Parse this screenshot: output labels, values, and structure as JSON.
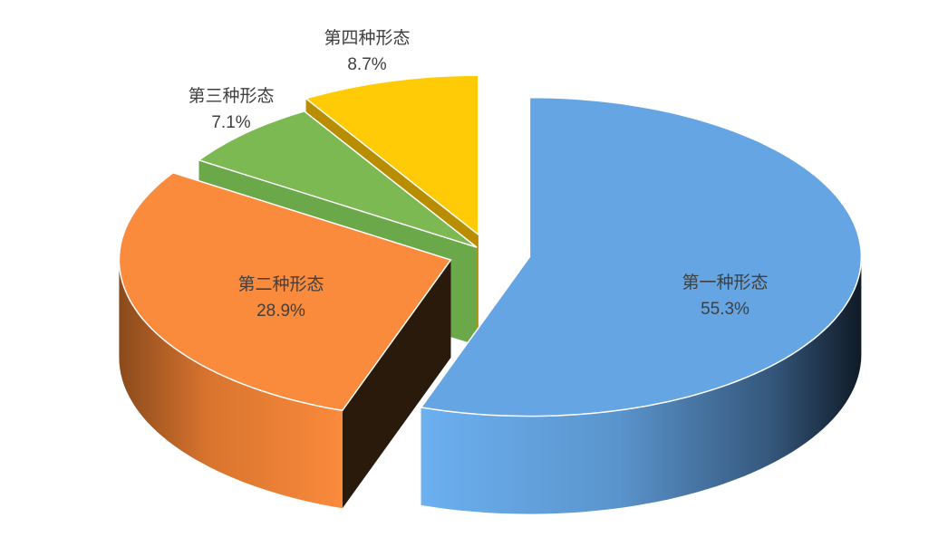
{
  "chart_data": {
    "type": "pie3d",
    "categories": [
      "第一种形态",
      "第二种形态",
      "第三种形态",
      "第四种形态"
    ],
    "values": [
      55.3,
      28.9,
      7.1,
      8.7
    ],
    "value_labels": [
      "55.3%",
      "28.9%",
      "7.1%",
      "8.7%"
    ],
    "colors": [
      "#65a5e3",
      "#fa8a3c",
      "#7db953",
      "#fecb06"
    ]
  }
}
